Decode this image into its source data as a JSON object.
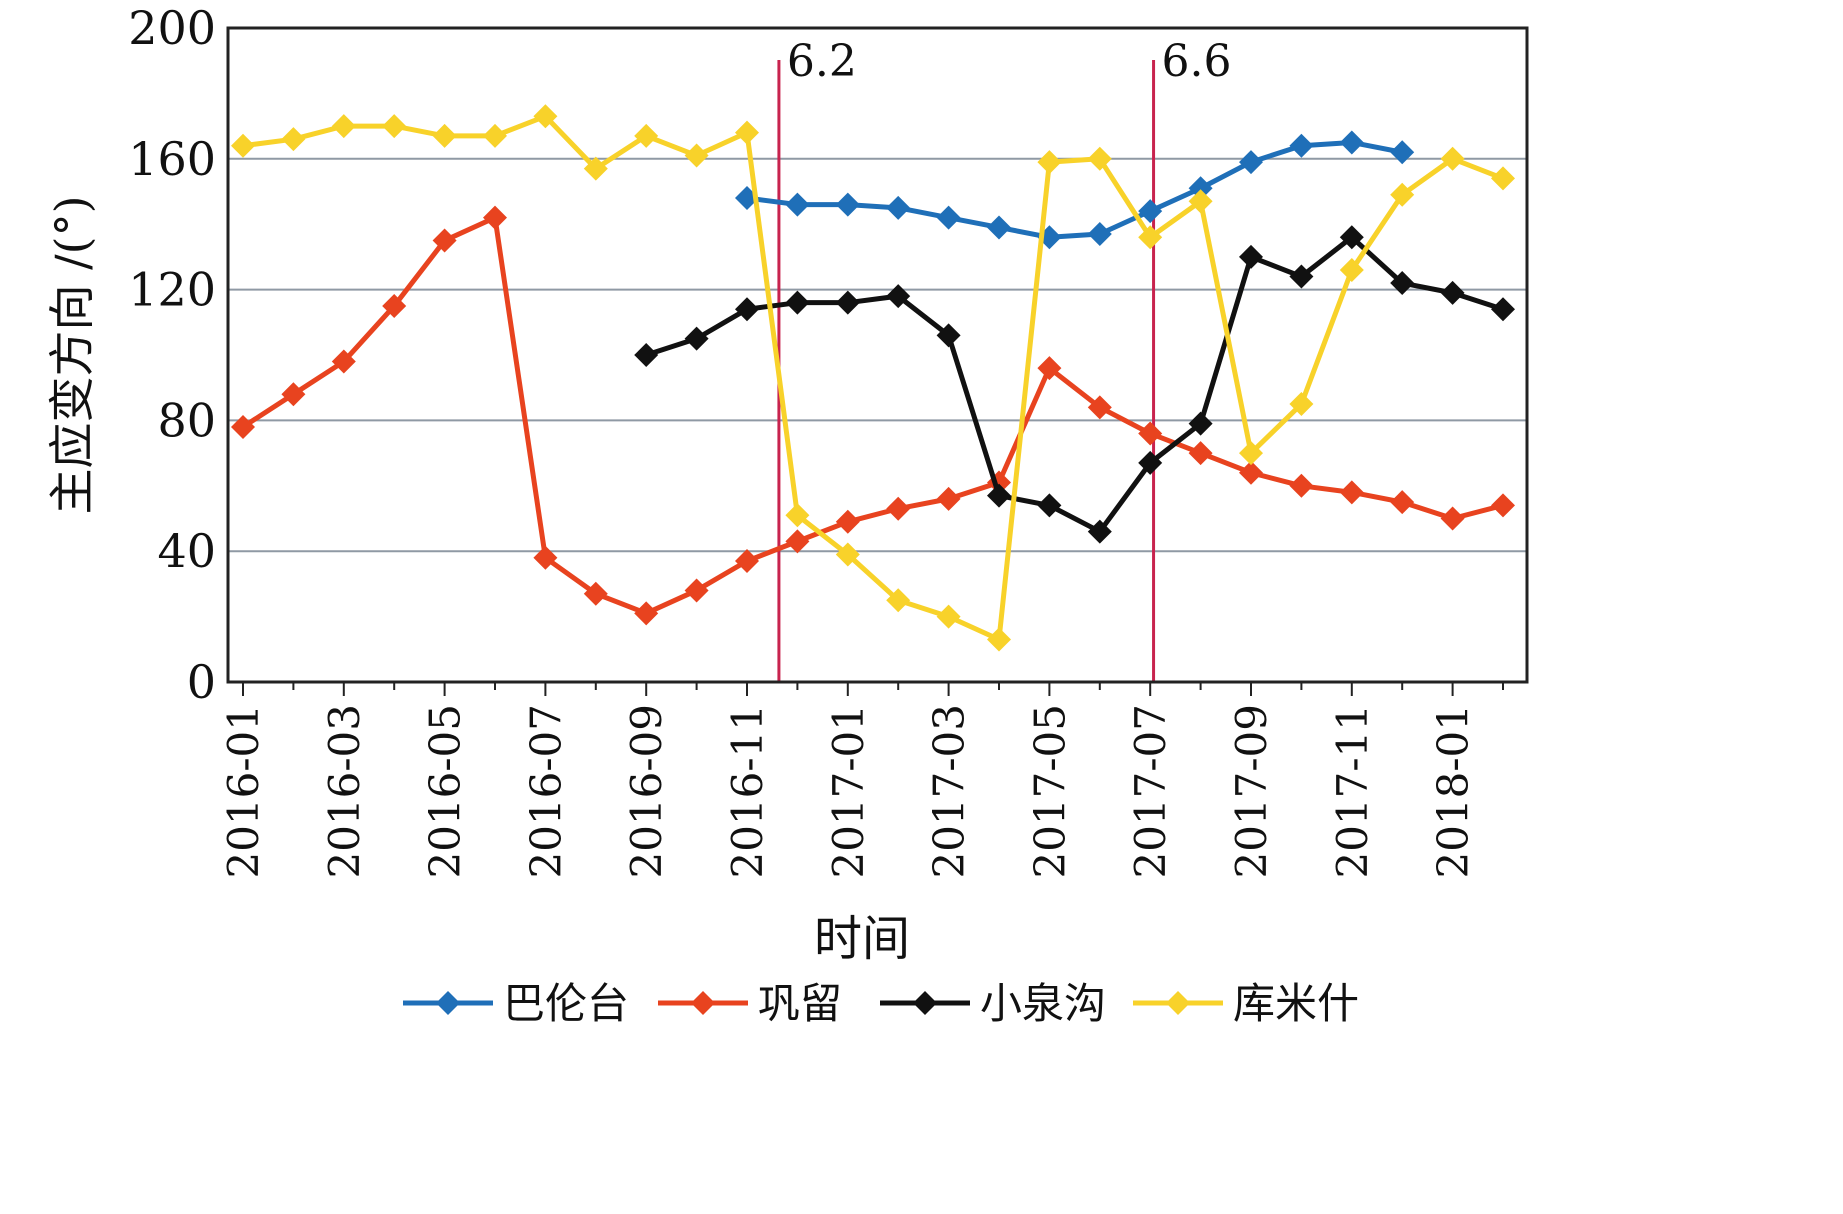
{
  "chart_data": {
    "type": "line",
    "title": "",
    "xlabel": "时间",
    "ylabel": "主应变方向 /(°)",
    "ylim": [
      0,
      200
    ],
    "yticks": [
      0,
      40,
      80,
      120,
      160,
      200
    ],
    "grid": true,
    "legend_position": "bottom",
    "month_labels": [
      "2016-01",
      "2016-03",
      "2016-05",
      "2016-07",
      "2016-09",
      "2016-11",
      "2017-01",
      "2017-03",
      "2017-05",
      "2017-07",
      "2017-09",
      "2017-11",
      "2018-01"
    ],
    "x": [
      "2016-01",
      "2016-02",
      "2016-03",
      "2016-04",
      "2016-05",
      "2016-06",
      "2016-07",
      "2016-08",
      "2016-09",
      "2016-10",
      "2016-11",
      "2016-12",
      "2017-01",
      "2017-02",
      "2017-03",
      "2017-04",
      "2017-05",
      "2017-06",
      "2017-07",
      "2017-08",
      "2017-09",
      "2017-10",
      "2017-11",
      "2017-12",
      "2018-01",
      "2018-02"
    ],
    "series": [
      {
        "name": "巴伦台",
        "color": "#1f6fb8",
        "values": [
          null,
          null,
          null,
          null,
          null,
          null,
          null,
          null,
          null,
          null,
          148,
          146,
          146,
          145,
          142,
          139,
          136,
          137,
          144,
          151,
          159,
          164,
          165,
          162,
          null,
          null
        ]
      },
      {
        "name": "巩留",
        "color": "#e8431f",
        "values": [
          78,
          88,
          98,
          115,
          135,
          142,
          38,
          27,
          21,
          28,
          37,
          43,
          49,
          53,
          56,
          61,
          96,
          84,
          76,
          70,
          64,
          60,
          58,
          55,
          50,
          54
        ]
      },
      {
        "name": "小泉沟",
        "color": "#111111",
        "values": [
          null,
          null,
          null,
          null,
          null,
          null,
          null,
          null,
          100,
          105,
          114,
          116,
          116,
          118,
          106,
          57,
          54,
          46,
          67,
          79,
          130,
          124,
          136,
          122,
          119,
          114
        ]
      },
      {
        "name": "库米什",
        "color": "#f8d22a",
        "values": [
          164,
          166,
          170,
          170,
          167,
          167,
          173,
          157,
          167,
          161,
          168,
          51,
          39,
          25,
          20,
          13,
          159,
          160,
          136,
          147,
          70,
          85,
          126,
          149,
          160,
          154
        ]
      }
    ],
    "annotations": [
      {
        "label": "6.2",
        "date": "2016-11-20",
        "color": "#c8234e"
      },
      {
        "label": "6.6",
        "date": "2017-07-03",
        "color": "#c8234e"
      }
    ]
  }
}
